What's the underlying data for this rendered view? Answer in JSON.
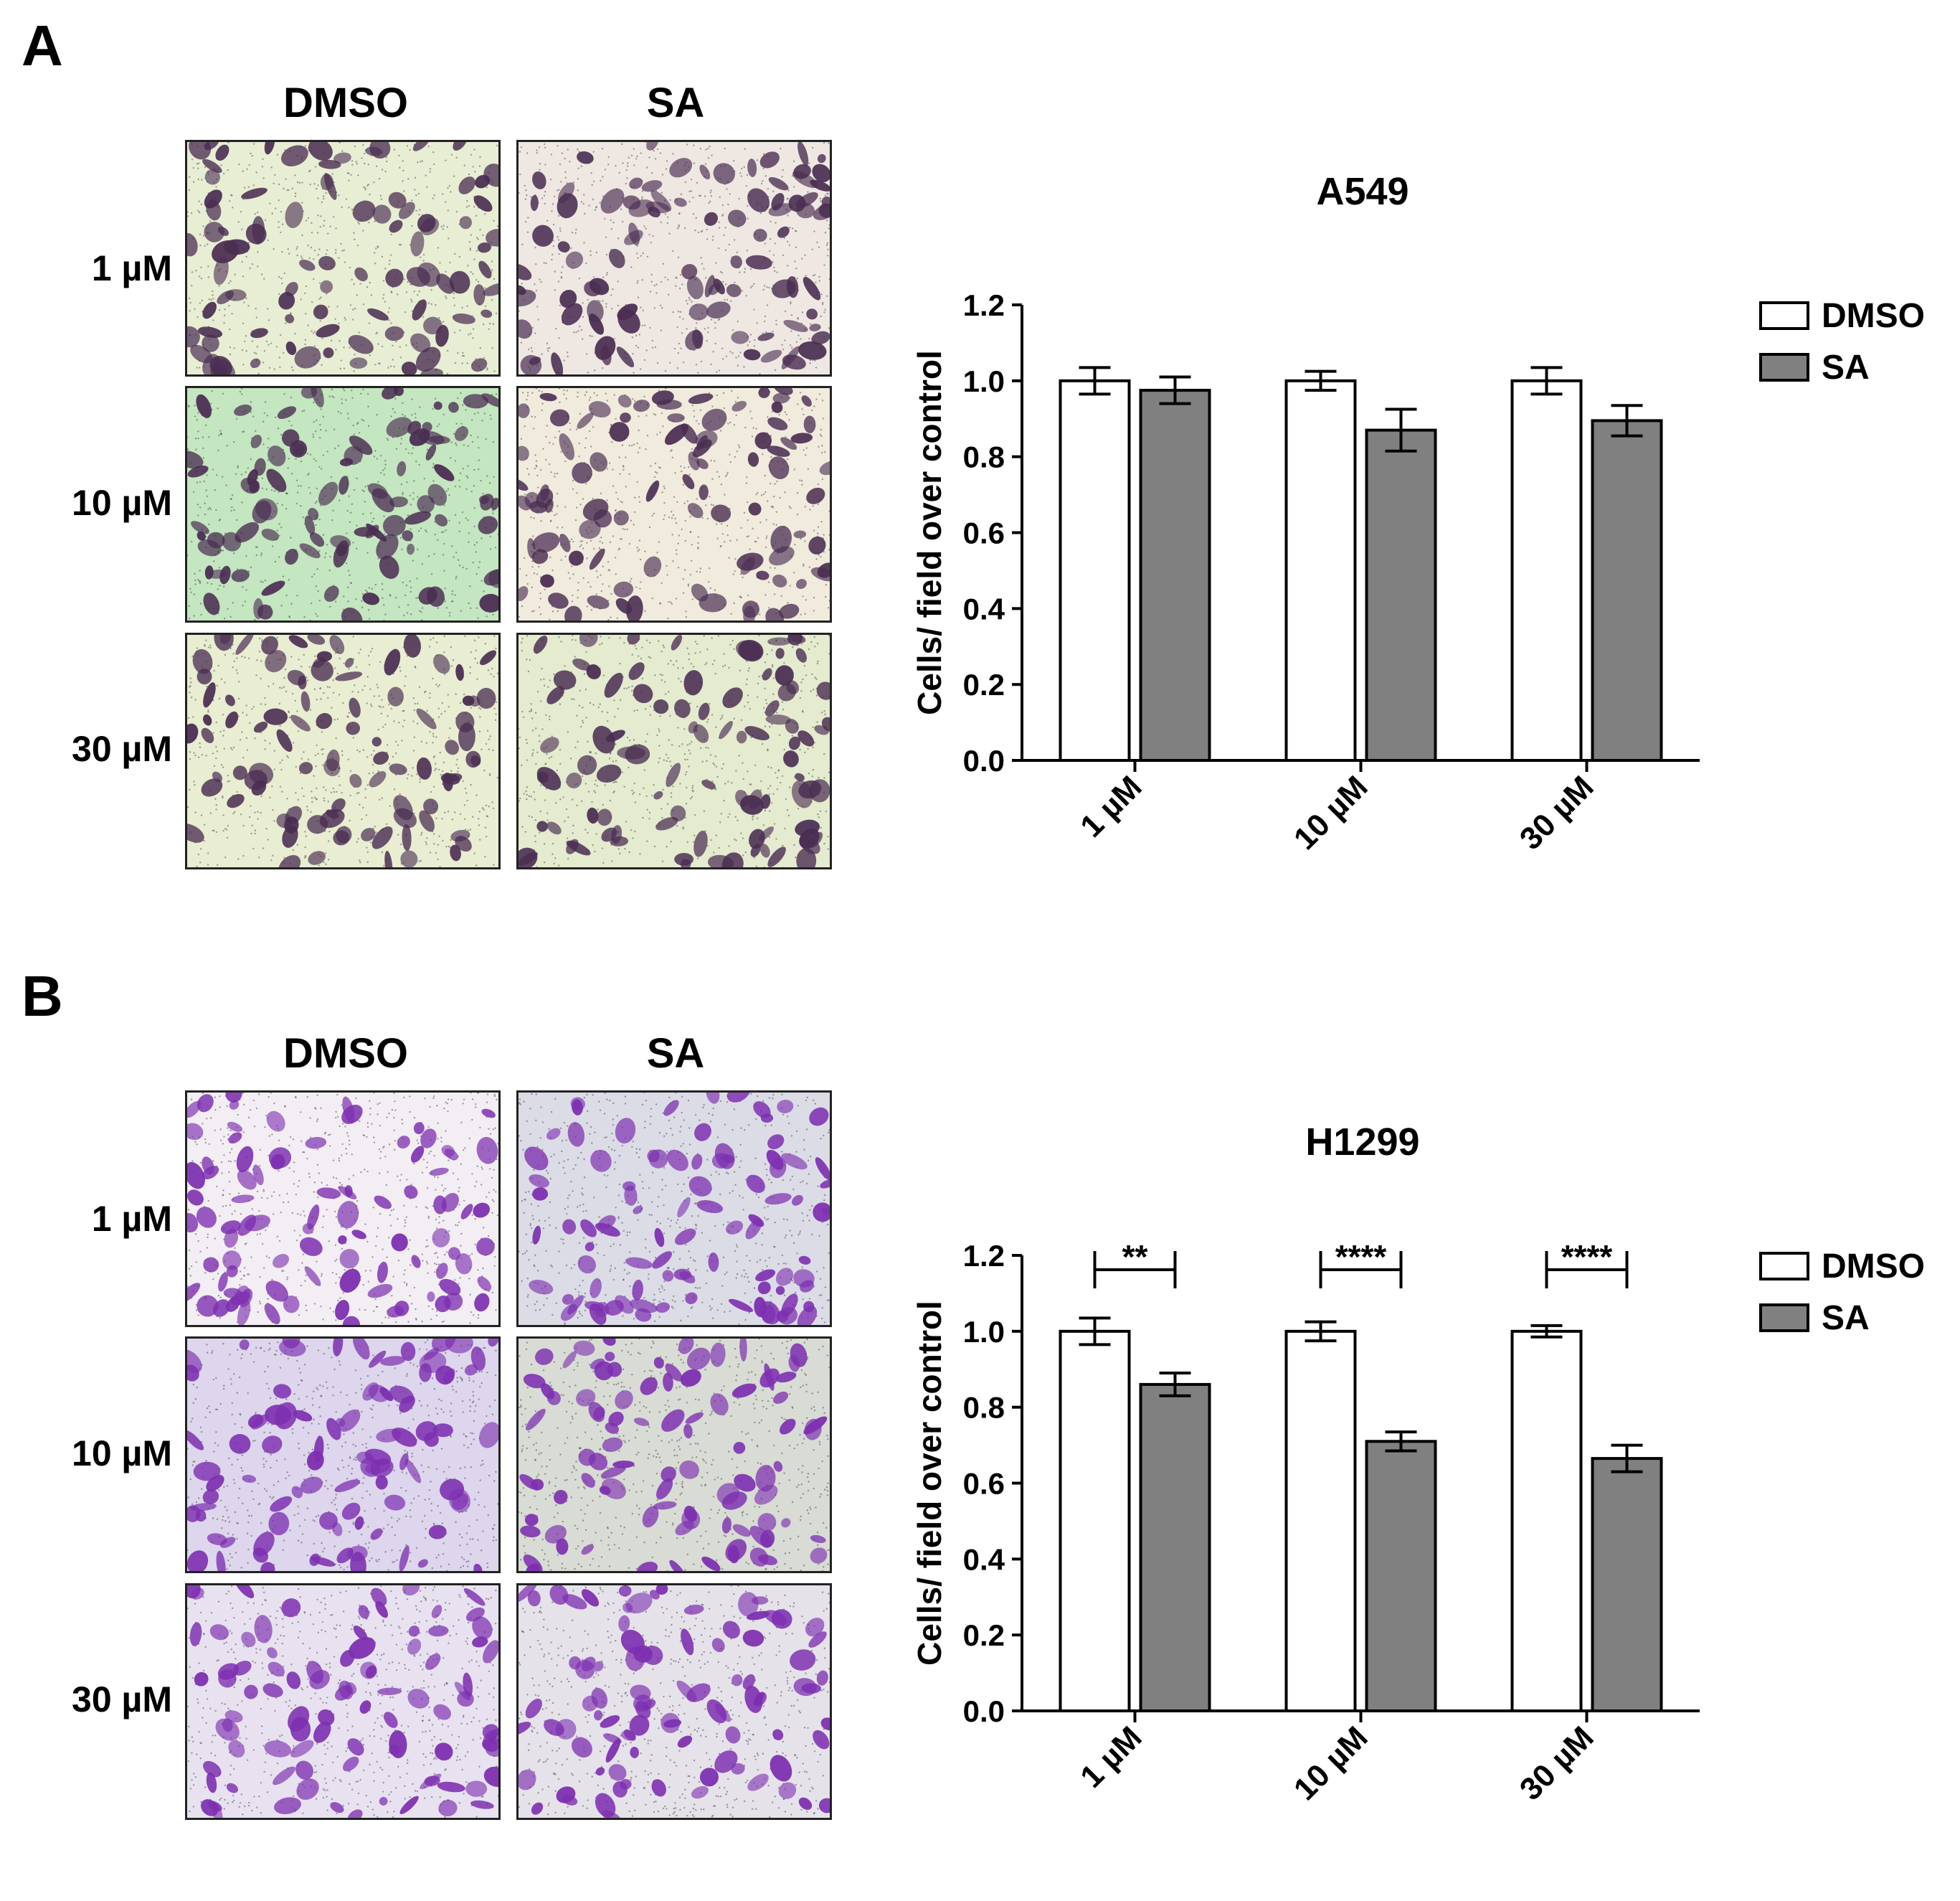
{
  "panels": [
    {
      "letter": "A",
      "column_headers": [
        "DMSO",
        "SA"
      ],
      "row_labels": [
        "1 µM",
        "10 µM",
        "30 µM"
      ],
      "colors": {
        "bg_dmso_rows": [
          "#e8eed4",
          "#c4e6c0",
          "#e9edd2"
        ],
        "bg_sa_rows": [
          "#efe8e2",
          "#f0ebdd",
          "#e4ebcf"
        ],
        "cell": "#4a2d52"
      },
      "chart_data": {
        "type": "bar",
        "title": "A549",
        "ylabel": "Cells/ field over control",
        "xlabel": "",
        "categories": [
          "1 µM",
          "10 µM",
          "30 µM"
        ],
        "series": [
          {
            "name": "DMSO",
            "values": [
              1.0,
              1.0,
              1.0
            ],
            "errors": [
              0.035,
              0.025,
              0.035
            ],
            "color": "#ffffff"
          },
          {
            "name": "SA",
            "values": [
              0.975,
              0.87,
              0.895
            ],
            "errors": [
              0.035,
              0.055,
              0.04
            ],
            "color": "#808080"
          }
        ],
        "ylim": [
          0,
          1.2
        ],
        "yticks": [
          "0.0",
          "0.2",
          "0.4",
          "0.6",
          "0.8",
          "1.0",
          "1.2"
        ],
        "significance": [],
        "grid": false,
        "legend_position": "right"
      }
    },
    {
      "letter": "B",
      "column_headers": [
        "DMSO",
        "SA"
      ],
      "row_labels": [
        "1 µM",
        "10 µM",
        "30 µM"
      ],
      "colors": {
        "bg_dmso_rows": [
          "#f2eef4",
          "#ddd6ec",
          "#e8e2f0"
        ],
        "bg_sa_rows": [
          "#dcdce6",
          "#d8dcd4",
          "#e6e2ea"
        ],
        "cell": "#7d2fb0"
      },
      "chart_data": {
        "type": "bar",
        "title": "H1299",
        "ylabel": "Cells/ field over control",
        "xlabel": "",
        "categories": [
          "1 µM",
          "10 µM",
          "30 µM"
        ],
        "series": [
          {
            "name": "DMSO",
            "values": [
              1.0,
              1.0,
              1.0
            ],
            "errors": [
              0.035,
              0.025,
              0.015
            ],
            "color": "#ffffff"
          },
          {
            "name": "SA",
            "values": [
              0.86,
              0.71,
              0.665
            ],
            "errors": [
              0.03,
              0.025,
              0.035
            ],
            "color": "#808080"
          }
        ],
        "ylim": [
          0,
          1.2
        ],
        "yticks": [
          "0.0",
          "0.2",
          "0.4",
          "0.6",
          "0.8",
          "1.0",
          "1.2"
        ],
        "significance": [
          "**",
          "****",
          "****"
        ],
        "grid": false,
        "legend_position": "right"
      }
    }
  ]
}
